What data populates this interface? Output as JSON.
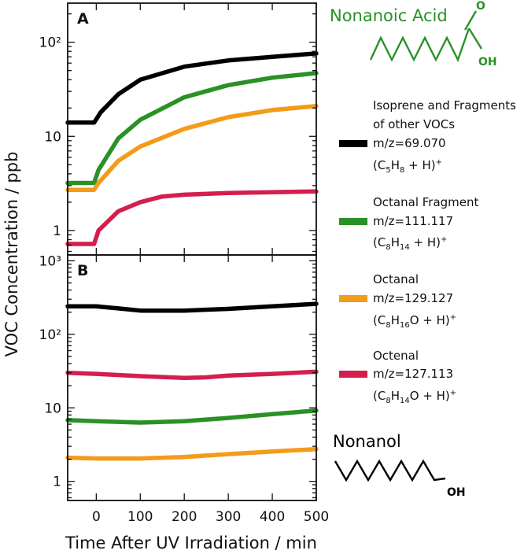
{
  "chart_data": {
    "type": "line",
    "ylabel": "VOC Concentration / ppb",
    "xlabel": "Time After UV Irradiation / min",
    "xlim": [
      -65,
      500
    ],
    "xticks": [
      0,
      100,
      200,
      300,
      400,
      500
    ],
    "panels": [
      {
        "label": "A",
        "yscale": "log",
        "ylim": [
          0.55,
          260
        ],
        "ytick_labels": [
          "1",
          "10",
          "10²"
        ],
        "ytick_values": [
          1,
          10,
          100
        ],
        "series": [
          {
            "name": "Isoprene and Fragments of other VOCs",
            "color": "#000000",
            "x": [
              -65,
              -5,
              10,
              50,
              100,
              200,
              300,
              400,
              500
            ],
            "y": [
              14,
              14,
              18,
              28,
              40,
              55,
              64,
              70,
              76
            ]
          },
          {
            "name": "Octanal Fragment",
            "color": "#2a9126",
            "x": [
              -65,
              -5,
              5,
              50,
              100,
              200,
              300,
              400,
              500
            ],
            "y": [
              3.2,
              3.2,
              4.4,
              9.5,
              15,
              26,
              35,
              42,
              47
            ]
          },
          {
            "name": "Octanal",
            "color": "#f39b1a",
            "x": [
              -65,
              -5,
              5,
              50,
              100,
              200,
              300,
              400,
              500
            ],
            "y": [
              2.7,
              2.7,
              3.2,
              5.5,
              7.8,
              12,
              16,
              19,
              21
            ]
          },
          {
            "name": "Octenal",
            "color": "#d41e4e",
            "x": [
              -65,
              -5,
              5,
              50,
              100,
              150,
              200,
              300,
              400,
              500
            ],
            "y": [
              0.72,
              0.72,
              1.0,
              1.6,
              2.0,
              2.3,
              2.4,
              2.5,
              2.55,
              2.6
            ]
          }
        ]
      },
      {
        "label": "B",
        "yscale": "log",
        "ylim": [
          0.55,
          1200
        ],
        "ytick_labels": [
          "1",
          "10",
          "10²",
          "10³"
        ],
        "ytick_values": [
          1,
          10,
          100,
          1000
        ],
        "series": [
          {
            "name": "Nonanol m/z=69.070",
            "color": "#000000",
            "x": [
              -65,
              0,
              50,
              100,
              200,
              300,
              400,
              500
            ],
            "y": [
              240,
              240,
              225,
              210,
              210,
              222,
              240,
              260
            ]
          },
          {
            "name": "Nonanol m/z=111.117",
            "color": "#2a9126",
            "x": [
              -65,
              0,
              100,
              200,
              300,
              400,
              500
            ],
            "y": [
              6.8,
              6.6,
              6.3,
              6.6,
              7.3,
              8.2,
              9.2
            ]
          },
          {
            "name": "Nonanol m/z=129.127",
            "color": "#f39b1a",
            "x": [
              -65,
              0,
              100,
              200,
              300,
              400,
              500
            ],
            "y": [
              2.1,
              2.05,
              2.05,
              2.15,
              2.35,
              2.55,
              2.75
            ]
          },
          {
            "name": "Nonanol m/z=127.113",
            "color": "#d41e4e",
            "x": [
              -65,
              0,
              100,
              200,
              250,
              300,
              400,
              500
            ],
            "y": [
              30,
              29,
              27,
              25.5,
              26,
              27.5,
              29,
              31
            ]
          }
        ]
      }
    ]
  },
  "legend": [
    {
      "name_lines": [
        "Isoprene and Fragments",
        "of other VOCs"
      ],
      "mz": "m/z=69.070",
      "formula": {
        "C": "5",
        "H": "8",
        "O": ""
      },
      "color": "#000000"
    },
    {
      "name_lines": [
        "Octanal Fragment"
      ],
      "mz": "m/z=111.117",
      "formula": {
        "C": "8",
        "H": "14",
        "O": ""
      },
      "color": "#2a9126"
    },
    {
      "name_lines": [
        "Octanal"
      ],
      "mz": "m/z=129.127",
      "formula": {
        "C": "8",
        "H": "16",
        "O": "O"
      },
      "color": "#f39b1a"
    },
    {
      "name_lines": [
        "Octenal"
      ],
      "mz": "m/z=127.113",
      "formula": {
        "C": "8",
        "H": "14",
        "O": "O"
      },
      "color": "#d41e4e"
    }
  ],
  "formula_parts": {
    "open": "(C",
    "H": "H",
    "plus_h": " + H)",
    "plus_sup": "+"
  },
  "structures": {
    "acid": {
      "title": "Nonanoic Acid",
      "o_label": "O",
      "oh_label": "OH",
      "color": "#2a9126"
    },
    "alcohol": {
      "title": "Nonanol",
      "oh_label": "OH",
      "color": "#000000"
    }
  }
}
